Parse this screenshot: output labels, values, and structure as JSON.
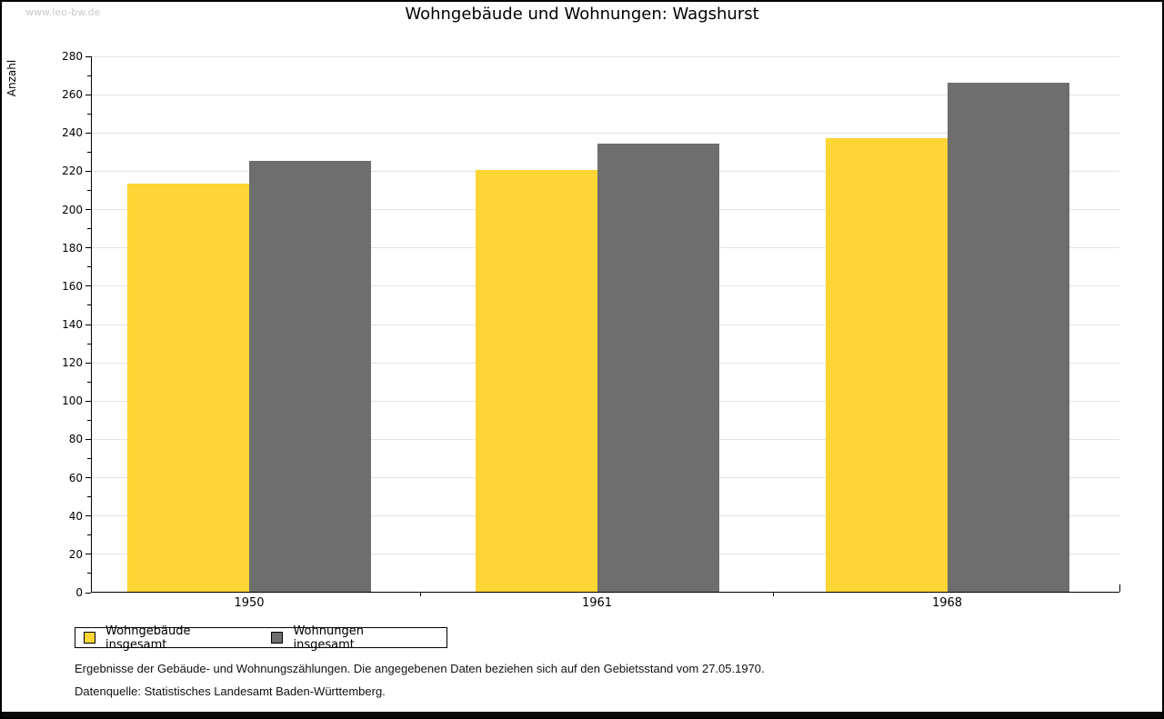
{
  "watermark": "www.leo-bw.de",
  "chart_data": {
    "type": "bar",
    "title": "Wohngebäude und Wohnungen: Wagshurst",
    "ylabel": "Anzahl",
    "xlabel": "",
    "categories": [
      "1950",
      "1961",
      "1968"
    ],
    "series": [
      {
        "name": "Wohngebäude insgesamt",
        "color": "#fdd535",
        "values": [
          213,
          220,
          237
        ]
      },
      {
        "name": "Wohnungen insgesamt",
        "color": "#6e6e6e",
        "values": [
          225,
          234,
          266
        ]
      }
    ],
    "ylim": [
      0,
      280
    ],
    "y_major_step": 20,
    "y_minor_step": 10,
    "grid": "horizontal-major",
    "gridline_color": "#e2e2e2",
    "legend_position": "bottom-left"
  },
  "footer": {
    "line1": "Ergebnisse der Gebäude- und Wohnungszählungen. Die angegebenen Daten beziehen sich auf den Gebietsstand vom 27.05.1970.",
    "line2": "Datenquelle: Statistisches Landesamt Baden-Württemberg."
  }
}
